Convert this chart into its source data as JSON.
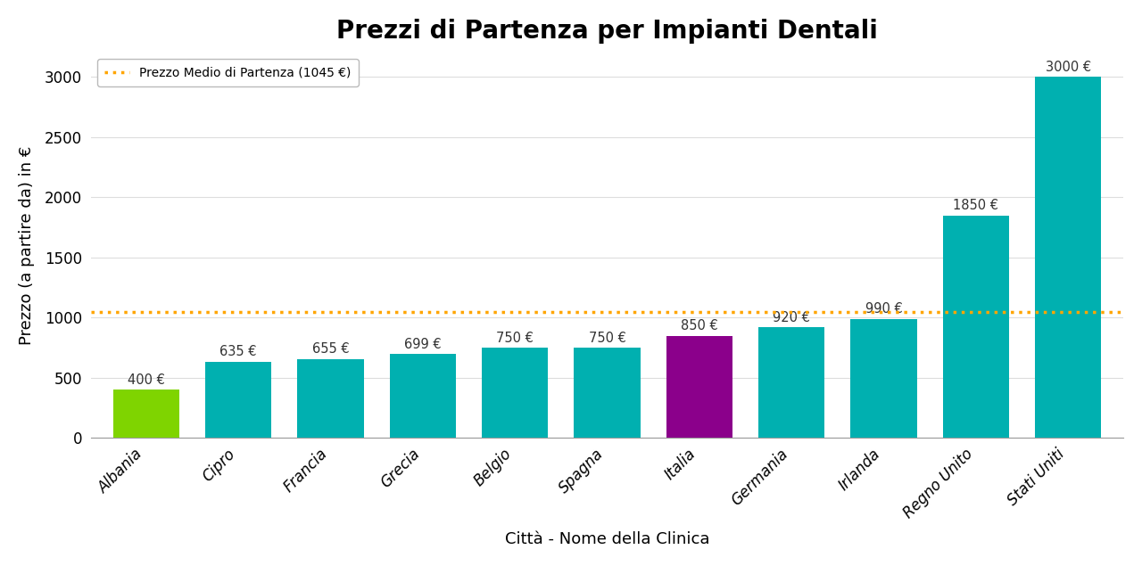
{
  "title": "Prezzi di Partenza per Impianti Dentali",
  "xlabel": "Città - Nome della Clinica",
  "ylabel": "Prezzo (a partire da) in €",
  "categories": [
    "Albania",
    "Cipro",
    "Francia",
    "Grecia",
    "Belgio",
    "Spagna",
    "Italia",
    "Germania",
    "Irlanda",
    "Regno Unito",
    "Stati Uniti"
  ],
  "values": [
    400,
    635,
    655,
    699,
    750,
    750,
    850,
    920,
    990,
    1850,
    3000
  ],
  "bar_colors": [
    "#7FD400",
    "#00B0B0",
    "#00B0B0",
    "#00B0B0",
    "#00B0B0",
    "#00B0B0",
    "#8B008B",
    "#00B0B0",
    "#00B0B0",
    "#00B0B0",
    "#00B0B0"
  ],
  "mean_value": 1045,
  "mean_label": "Prezzo Medio di Partenza (1045 €)",
  "mean_line_color": "#FFA500",
  "background_color": "#FFFFFF",
  "grid_color": "#DDDDDD",
  "ylim": [
    0,
    3200
  ],
  "yticks": [
    0,
    500,
    1000,
    1500,
    2000,
    2500,
    3000
  ],
  "title_fontsize": 20,
  "label_fontsize": 13,
  "tick_fontsize": 12,
  "value_fontsize": 10.5,
  "bar_width": 0.72
}
